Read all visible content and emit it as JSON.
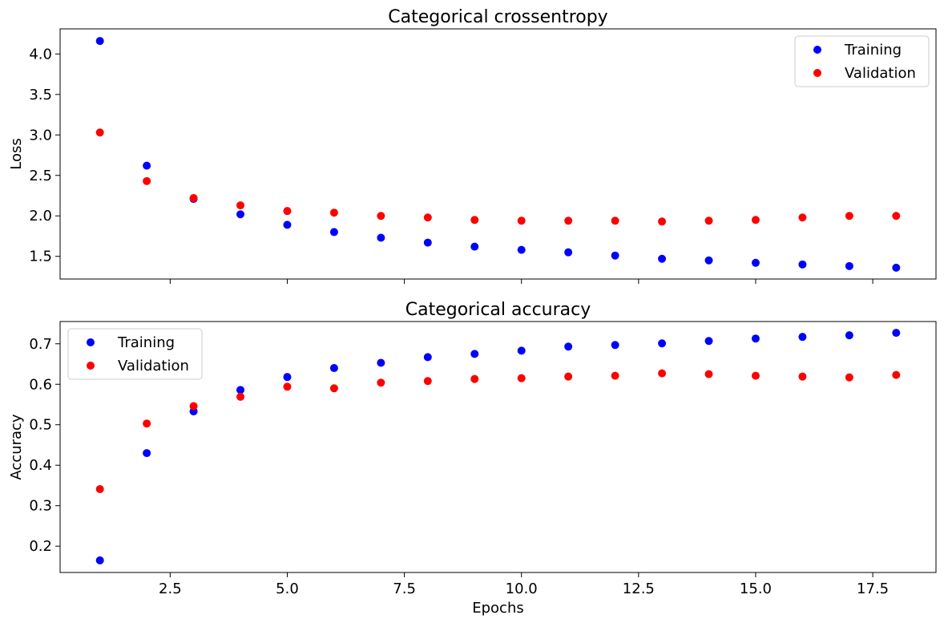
{
  "chart_data": [
    {
      "type": "scatter",
      "title": "Categorical crossentropy",
      "xlabel": "",
      "ylabel": "Loss",
      "xlim": [
        0.15,
        18.85
      ],
      "ylim": [
        1.22,
        4.31
      ],
      "xticks": [
        2.5,
        5.0,
        7.5,
        10.0,
        12.5,
        15.0,
        17.5
      ],
      "yticks": [
        1.5,
        2.0,
        2.5,
        3.0,
        3.5,
        4.0
      ],
      "ytick_labels": [
        "1.5",
        "2.0",
        "2.5",
        "3.0",
        "3.5",
        "4.0"
      ],
      "show_xtick_labels": false,
      "legend": "top-right",
      "x": [
        1,
        2,
        3,
        4,
        5,
        6,
        7,
        8,
        9,
        10,
        11,
        12,
        13,
        14,
        15,
        16,
        17,
        18
      ],
      "series": [
        {
          "name": "Training",
          "color": "#0000ff",
          "values": [
            4.16,
            2.62,
            2.21,
            2.02,
            1.89,
            1.8,
            1.73,
            1.67,
            1.62,
            1.58,
            1.55,
            1.51,
            1.47,
            1.45,
            1.42,
            1.4,
            1.38,
            1.36
          ]
        },
        {
          "name": "Validation",
          "color": "#ff0000",
          "values": [
            3.03,
            2.43,
            2.22,
            2.13,
            2.06,
            2.04,
            2.0,
            1.98,
            1.95,
            1.94,
            1.94,
            1.94,
            1.93,
            1.94,
            1.95,
            1.98,
            2.0,
            2.0
          ]
        }
      ]
    },
    {
      "type": "scatter",
      "title": "Categorical accuracy",
      "xlabel": "Epochs",
      "ylabel": "Accuracy",
      "xlim": [
        0.15,
        18.85
      ],
      "ylim": [
        0.135,
        0.755
      ],
      "xticks": [
        2.5,
        5.0,
        7.5,
        10.0,
        12.5,
        15.0,
        17.5
      ],
      "xtick_labels": [
        "2.5",
        "5.0",
        "7.5",
        "10.0",
        "12.5",
        "15.0",
        "17.5"
      ],
      "yticks": [
        0.2,
        0.3,
        0.4,
        0.5,
        0.6,
        0.7
      ],
      "ytick_labels": [
        "0.2",
        "0.3",
        "0.4",
        "0.5",
        "0.6",
        "0.7"
      ],
      "show_xtick_labels": true,
      "legend": "top-left",
      "x": [
        1,
        2,
        3,
        4,
        5,
        6,
        7,
        8,
        9,
        10,
        11,
        12,
        13,
        14,
        15,
        16,
        17,
        18
      ],
      "series": [
        {
          "name": "Training",
          "color": "#0000ff",
          "values": [
            0.165,
            0.43,
            0.533,
            0.586,
            0.618,
            0.64,
            0.653,
            0.667,
            0.675,
            0.683,
            0.693,
            0.697,
            0.701,
            0.707,
            0.713,
            0.717,
            0.721,
            0.727
          ]
        },
        {
          "name": "Validation",
          "color": "#ff0000",
          "values": [
            0.341,
            0.503,
            0.546,
            0.569,
            0.594,
            0.59,
            0.604,
            0.608,
            0.613,
            0.615,
            0.619,
            0.621,
            0.627,
            0.625,
            0.621,
            0.619,
            0.617,
            0.623
          ]
        }
      ]
    }
  ]
}
